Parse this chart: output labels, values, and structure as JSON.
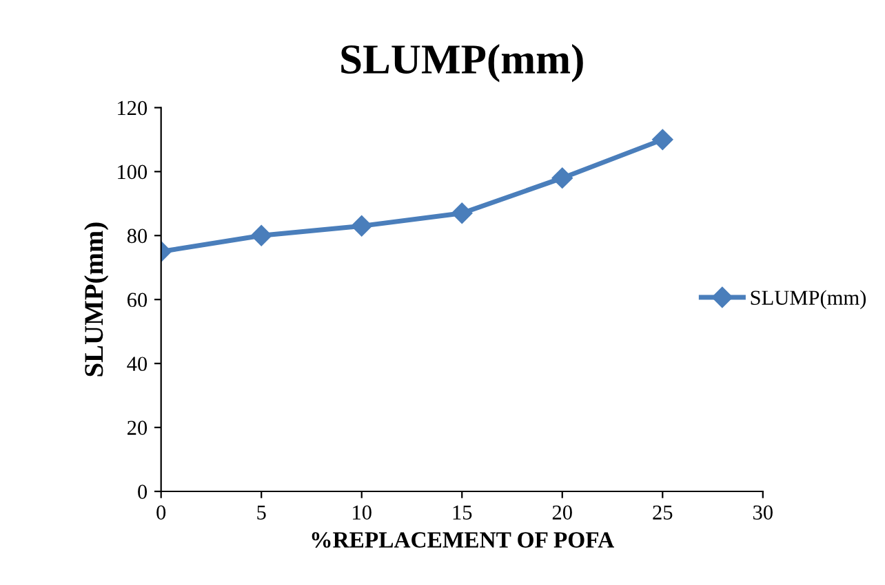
{
  "chart_data": {
    "type": "line",
    "title": "SLUMP(mm)",
    "xlabel": "%REPLACEMENT OF POFA",
    "ylabel": "SLUMP(mm)",
    "x": [
      0,
      5,
      10,
      15,
      20,
      25
    ],
    "series": [
      {
        "name": "SLUMP(mm)",
        "color": "#4a7ebb",
        "values": [
          75,
          80,
          83,
          87,
          98,
          110
        ]
      }
    ],
    "xlim": [
      0,
      30
    ],
    "xticks": [
      0,
      5,
      10,
      15,
      20,
      25,
      30
    ],
    "ylim": [
      0,
      120
    ],
    "yticks": [
      0,
      20,
      40,
      60,
      80,
      100,
      120
    ],
    "grid": false,
    "legend": "right",
    "marker": "diamond",
    "line_style": "solid"
  }
}
